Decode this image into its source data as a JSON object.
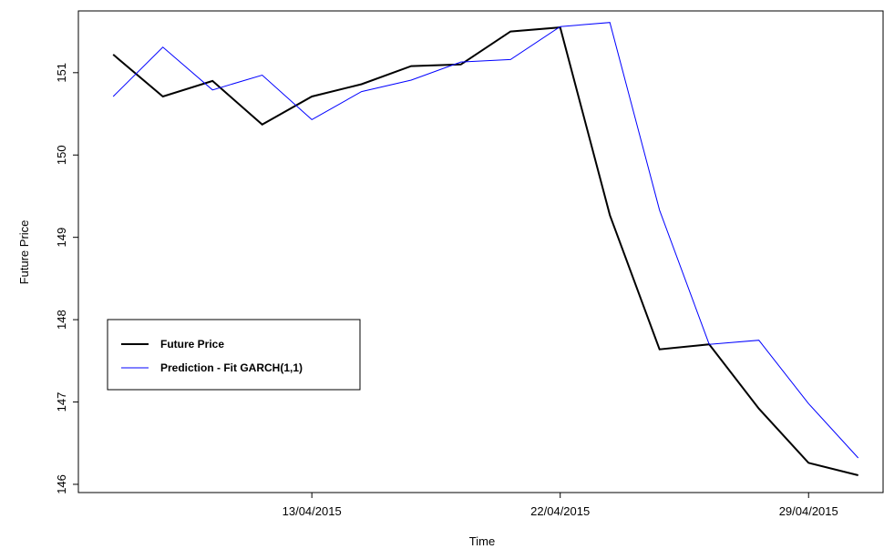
{
  "chart_data": {
    "type": "line",
    "title": "",
    "xlabel": "Time",
    "ylabel": "Future Price",
    "x_tick_labels": [
      "13/04/2015",
      "22/04/2015",
      "29/04/2015"
    ],
    "x_tick_positions": [
      5,
      10,
      15
    ],
    "y_ticks": [
      146,
      147,
      148,
      149,
      150,
      151
    ],
    "xlim": [
      0.3,
      16.5
    ],
    "ylim": [
      145.9,
      151.75
    ],
    "grid": false,
    "legend_position": "bottom-left",
    "x": [
      1,
      2,
      3,
      4,
      5,
      6,
      7,
      8,
      9,
      10,
      11,
      12,
      13,
      14,
      15,
      16
    ],
    "series": [
      {
        "name": "Future Price",
        "color": "#000000",
        "values": [
          151.22,
          150.71,
          150.9,
          150.37,
          150.71,
          150.86,
          151.08,
          151.1,
          151.5,
          151.55,
          149.27,
          147.64,
          147.7,
          146.92,
          146.26,
          146.11
        ]
      },
      {
        "name": "Prediction - Fit GARCH(1,1)",
        "color": "#0000ff",
        "values": [
          150.71,
          151.31,
          150.79,
          150.97,
          150.43,
          150.77,
          150.91,
          151.13,
          151.16,
          151.56,
          151.61,
          149.33,
          147.7,
          147.75,
          146.98,
          146.32
        ]
      }
    ],
    "legend": [
      "Future Price",
      "Prediction - Fit GARCH(1,1)"
    ]
  }
}
